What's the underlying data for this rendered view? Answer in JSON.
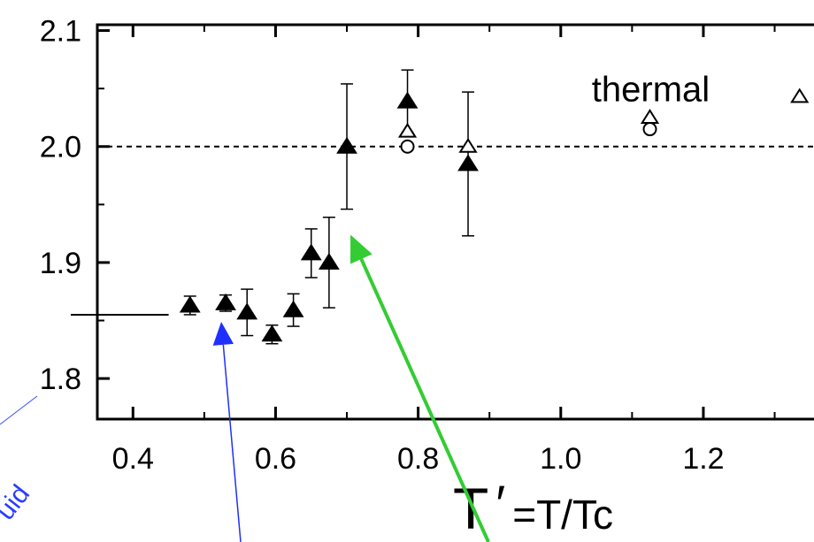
{
  "chart_data": {
    "type": "scatter",
    "title": "",
    "xlabel": "T′ =T/Tc",
    "ylabel": "",
    "xlim": [
      0.35,
      1.38
    ],
    "ylim": [
      1.765,
      2.105
    ],
    "x_ticks": [
      "0.4",
      "0.6",
      "0.8",
      "1.0",
      "1.2"
    ],
    "x_tick_values": [
      0.4,
      0.6,
      0.8,
      1.0,
      1.2
    ],
    "y_ticks": [
      "1.8",
      "1.9",
      "2.0",
      "2.1"
    ],
    "y_tick_values": [
      1.8,
      1.9,
      2.0,
      2.1
    ],
    "grid": false,
    "reference_line": {
      "y": 2.0,
      "style": "dashed"
    },
    "low_temperature_line": {
      "y": 1.855,
      "x_range": [
        0.35,
        0.45
      ]
    },
    "series": [
      {
        "marker": "filled-triangle",
        "points": [
          {
            "x": 0.48,
            "y": 1.863,
            "err": 0.008
          },
          {
            "x": 0.53,
            "y": 1.865,
            "err": 0.007
          },
          {
            "x": 0.56,
            "y": 1.857,
            "err": 0.02
          },
          {
            "x": 0.595,
            "y": 1.838,
            "err": 0.008
          },
          {
            "x": 0.625,
            "y": 1.859,
            "err": 0.014
          },
          {
            "x": 0.65,
            "y": 1.908,
            "err": 0.021
          },
          {
            "x": 0.675,
            "y": 1.9,
            "err": 0.039
          },
          {
            "x": 0.7,
            "y": 2.0,
            "err": 0.054
          },
          {
            "x": 0.785,
            "y": 2.039,
            "err": 0.027
          },
          {
            "x": 0.87,
            "y": 1.985,
            "err": 0.062
          }
        ]
      },
      {
        "marker": "open-triangle",
        "points": [
          {
            "x": 0.785,
            "y": 2.013
          },
          {
            "x": 0.87,
            "y": 2.0
          },
          {
            "x": 1.125,
            "y": 2.025
          },
          {
            "x": 1.335,
            "y": 2.043
          }
        ]
      },
      {
        "marker": "open-circle",
        "points": [
          {
            "x": 0.785,
            "y": 2.0
          },
          {
            "x": 1.125,
            "y": 2.015
          }
        ]
      }
    ],
    "annotations": [
      {
        "text": "thermal",
        "x": 1.0,
        "y": 2.045
      }
    ],
    "arrows": [
      {
        "color": "#1f2fff",
        "to": {
          "x": 0.53,
          "y": 1.855
        }
      },
      {
        "color": "#33cc33",
        "to": {
          "x": 0.705,
          "y": 1.93
        }
      }
    ],
    "side_note_fragment": "uid"
  }
}
